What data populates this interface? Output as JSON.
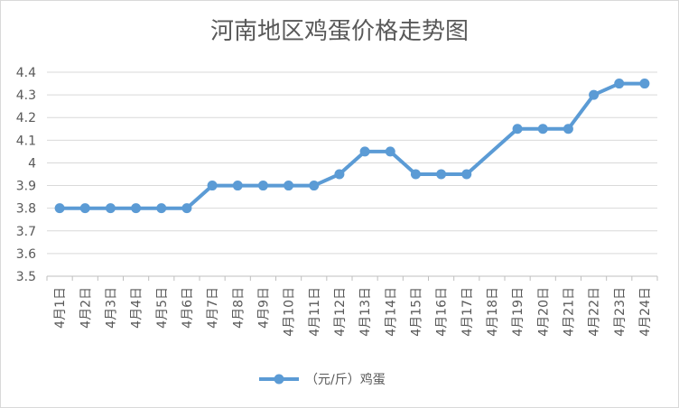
{
  "chart_data": {
    "type": "line",
    "title": "河南地区鸡蛋价格走势图",
    "xlabel": "",
    "ylabel": "",
    "categories": [
      "4月1日",
      "4月2日",
      "4月3日",
      "4月4日",
      "4月5日",
      "4月6日",
      "4月7日",
      "4月8日",
      "4月9日",
      "4月10日",
      "4月11日",
      "4月12日",
      "4月13日",
      "4月14日",
      "4月15日",
      "4月16日",
      "4月17日",
      "4月18日",
      "4月19日",
      "4月20日",
      "4月21日",
      "4月22日",
      "4月23日",
      "4月24日"
    ],
    "series": [
      {
        "name": "（元/斤）鸡蛋",
        "color": "#5b9bd5",
        "values": [
          3.8,
          3.8,
          3.8,
          3.8,
          3.8,
          3.8,
          3.9,
          3.9,
          3.9,
          3.9,
          3.9,
          3.95,
          4.05,
          4.05,
          3.95,
          3.95,
          3.95,
          null,
          4.15,
          4.15,
          4.15,
          4.3,
          4.35,
          4.35
        ]
      }
    ],
    "ylim": [
      3.5,
      4.4
    ],
    "yticks": [
      3.5,
      3.6,
      3.7,
      3.8,
      3.9,
      4,
      4.1,
      4.2,
      4.3,
      4.4
    ],
    "ytick_labels": [
      "3.5",
      "3.6",
      "3.7",
      "3.8",
      "3.9",
      "4",
      "4.1",
      "4.2",
      "4.3",
      "4.4"
    ],
    "grid": true,
    "legend_position": "bottom",
    "connect_gaps": true
  }
}
